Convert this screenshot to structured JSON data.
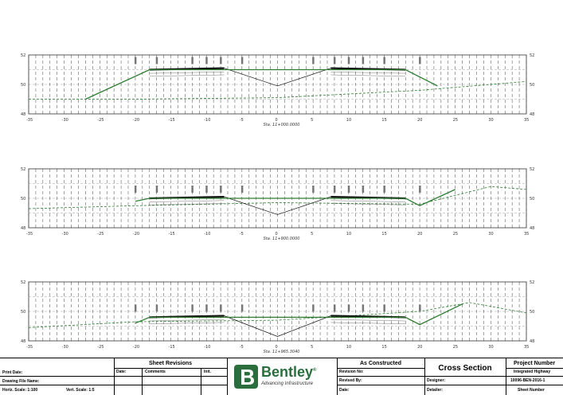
{
  "sections": [
    {
      "station": "Sta. 11+000.0000",
      "y_ticks": [
        "52",
        "50",
        "48"
      ],
      "x_ticks": [
        "-35",
        "-30",
        "-25",
        "-20",
        "-15",
        "-10",
        "-5",
        "0",
        "5",
        "10",
        "15",
        "20",
        "25",
        "30",
        "35"
      ],
      "design_profile": [
        [
          -27,
          49.0
        ],
        [
          -18,
          51.0
        ],
        [
          18,
          51.0
        ],
        [
          22.5,
          49.9
        ]
      ],
      "ground_profile": [
        [
          -35,
          49.0
        ],
        [
          -20,
          49.0
        ],
        [
          0,
          49.1
        ],
        [
          20,
          49.6
        ],
        [
          35,
          50.2
        ]
      ],
      "pavement": [
        [
          -18,
          51.0
        ],
        [
          -7.5,
          51.1
        ]
      ],
      "pavement_right": [
        [
          7.5,
          51.1
        ],
        [
          18,
          51.0
        ]
      ],
      "median": [
        [
          -7.5,
          51.1
        ],
        [
          0,
          49.9
        ],
        [
          7.5,
          51.1
        ]
      ]
    },
    {
      "station": "Sta. 11+900.0000",
      "y_ticks": [
        "52",
        "50",
        "48"
      ],
      "x_ticks": [
        "-35",
        "-30",
        "-25",
        "-20",
        "-15",
        "-10",
        "-5",
        "0",
        "5",
        "10",
        "15",
        "20",
        "25",
        "30",
        "35"
      ],
      "design_profile": [
        [
          -20,
          49.8
        ],
        [
          -18,
          50.0
        ],
        [
          18,
          50.0
        ],
        [
          20,
          49.5
        ],
        [
          25,
          50.6
        ]
      ],
      "ground_profile": [
        [
          -35,
          49.3
        ],
        [
          -20,
          49.5
        ],
        [
          0,
          49.7
        ],
        [
          20,
          49.6
        ],
        [
          30,
          50.8
        ],
        [
          35,
          50.6
        ]
      ],
      "pavement": [
        [
          -18,
          50.0
        ],
        [
          -7.5,
          50.1
        ]
      ],
      "pavement_right": [
        [
          7.5,
          50.1
        ],
        [
          18,
          50.0
        ]
      ],
      "median": [
        [
          -7.5,
          50.1
        ],
        [
          0,
          48.9
        ],
        [
          7.5,
          50.1
        ]
      ]
    },
    {
      "station": "Sta. 11+965.3040",
      "y_ticks": [
        "52",
        "50",
        "48"
      ],
      "x_ticks": [
        "-35",
        "-30",
        "-25",
        "-20",
        "-15",
        "-10",
        "-5",
        "0",
        "5",
        "10",
        "15",
        "20",
        "25",
        "30",
        "35"
      ],
      "design_profile": [
        [
          -20,
          49.2
        ],
        [
          -18,
          49.6
        ],
        [
          18,
          49.6
        ],
        [
          20,
          49.1
        ],
        [
          26,
          50.5
        ]
      ],
      "ground_profile": [
        [
          -35,
          48.9
        ],
        [
          -20,
          49.3
        ],
        [
          0,
          49.4
        ],
        [
          20,
          50.0
        ],
        [
          27,
          50.6
        ],
        [
          35,
          49.9
        ]
      ],
      "pavement": [
        [
          -18,
          49.6
        ],
        [
          -7.5,
          49.7
        ]
      ],
      "pavement_right": [
        [
          7.5,
          49.7
        ],
        [
          18,
          49.6
        ]
      ],
      "median": [
        [
          -7.5,
          49.7
        ],
        [
          0,
          48.3
        ],
        [
          7.5,
          49.7
        ]
      ]
    }
  ],
  "title_block": {
    "print_date": "Print Date:",
    "drawing_file_name": "Drawing File Name:",
    "horiz_scale": "Horiz. Scale: 1:100",
    "vert_scale": "Vert. Scale: 1:5",
    "sheet_revisions": "Sheet Revisions",
    "date": "Date:",
    "comments": "Comments",
    "init": "Init.",
    "logo_name": "Bentley",
    "logo_reg": "®",
    "logo_tagline": "Advancing Infrastructure",
    "as_constructed": "As Constructed",
    "revision_no": "Revision No:",
    "revised_by": "Revised By:",
    "date2": "Date:",
    "cross_section": "Cross Section",
    "designer": "Designer:",
    "detailer": "Detailer:",
    "project_number": "Project Number",
    "project_name": "Integrated Highway",
    "project_id": "10096-BEN-2016-1",
    "sheet_number": "Sheet Number"
  },
  "colors": {
    "design": "#2e7d32",
    "ground": "#2e7d32",
    "grid": "#888888",
    "road": "#111111"
  }
}
